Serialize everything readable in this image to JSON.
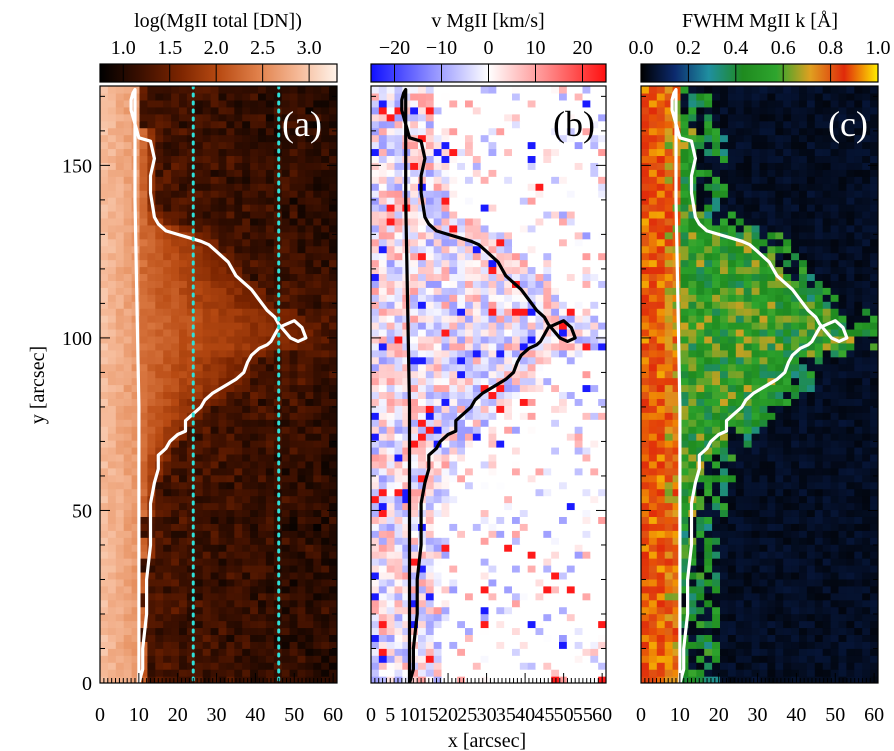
{
  "chart_data": [
    {
      "type": "heatmap",
      "panel_label": "(a)",
      "colorbar": {
        "title": "log(MgII total [DN])",
        "ticks": [
          "1.0",
          "1.5",
          "2.0",
          "2.5",
          "3.0"
        ],
        "tick_values": [
          1.0,
          1.5,
          2.0,
          2.5,
          3.0
        ],
        "range": [
          0.75,
          3.3
        ],
        "colormap": [
          "#000000",
          "#3a0f00",
          "#7a2400",
          "#b84a12",
          "#e0804a",
          "#f5b896",
          "#fff3ea"
        ]
      },
      "x_ticks": [
        "0",
        "10",
        "20",
        "30",
        "40",
        "50",
        "60"
      ],
      "y_ticks": [
        "0",
        "50",
        "100",
        "150"
      ],
      "ylabel": "y [arcsec]",
      "contour_color": "#ffffff",
      "vertical_lines": {
        "x": [
          24,
          46
        ],
        "color": "#2fe0d8"
      }
    },
    {
      "type": "heatmap",
      "panel_label": "(b)",
      "colorbar": {
        "title": "v MgII [km/s]",
        "ticks": [
          "−20",
          "−10",
          "0",
          "10",
          "20"
        ],
        "tick_values": [
          -20,
          -10,
          0,
          10,
          20
        ],
        "range": [
          -25,
          25
        ],
        "colormap": [
          "#1010ff",
          "#8a8aff",
          "#ffffff",
          "#ff8a8a",
          "#ff1010"
        ]
      },
      "x_ticks": [
        "0",
        "5",
        "10",
        "15",
        "20",
        "25",
        "30",
        "35",
        "40",
        "45",
        "50",
        "55",
        "60"
      ],
      "contour_color": "#000000"
    },
    {
      "type": "heatmap",
      "panel_label": "(c)",
      "colorbar": {
        "title": "FWHM MgII k [Å]",
        "ticks": [
          "0.0",
          "0.2",
          "0.4",
          "0.6",
          "0.8",
          "1.0"
        ],
        "tick_values": [
          0.0,
          0.2,
          0.4,
          0.6,
          0.8,
          1.0
        ],
        "range": [
          0.0,
          1.0
        ],
        "colormap": [
          "#000000",
          "#0c2a6e",
          "#1f8fa0",
          "#1f8a1f",
          "#2ea52e",
          "#e0a020",
          "#e02a0a",
          "#ffee00"
        ]
      },
      "x_ticks": [
        "0",
        "10",
        "20",
        "30",
        "40",
        "50",
        "60"
      ],
      "contour_color": "#ffffff"
    }
  ],
  "shared": {
    "xlabel": "x [arcsec]",
    "xlim": [
      0,
      61
    ],
    "ylim": [
      0,
      173
    ],
    "contour": {
      "x": [
        10,
        11,
        11,
        12,
        12,
        13,
        13,
        14,
        15,
        15,
        16,
        17,
        18,
        20,
        22,
        22,
        24,
        26,
        27,
        29,
        32,
        35,
        37,
        38,
        39,
        41,
        43,
        44,
        45,
        46,
        48,
        50,
        52,
        53,
        51,
        49,
        46,
        45,
        43,
        41,
        39,
        35,
        33,
        30,
        28,
        26,
        23,
        20,
        17,
        15,
        14,
        13,
        13,
        14,
        13,
        10,
        9,
        8,
        8,
        8.5,
        9,
        9,
        9,
        10,
        10
      ],
      "y": [
        0,
        4,
        10,
        20,
        30,
        40,
        52,
        58,
        62,
        66,
        67,
        68,
        70,
        72,
        73,
        76,
        78,
        80,
        82,
        84,
        86,
        88,
        90,
        93,
        95,
        97,
        98,
        99,
        101,
        103,
        104,
        105,
        103,
        100,
        99,
        100,
        104,
        106,
        108,
        111,
        114,
        118,
        122,
        125,
        127,
        128,
        129,
        130,
        131,
        133,
        135,
        142,
        147,
        152,
        157,
        158,
        162,
        166,
        169,
        171,
        172,
        165,
        140,
        80,
        0
      ]
    }
  }
}
